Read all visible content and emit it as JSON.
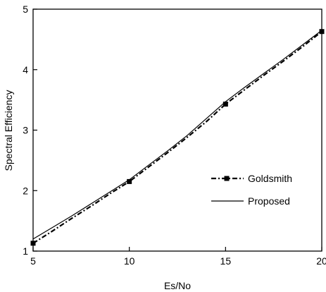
{
  "chart_data": {
    "type": "line",
    "title": "",
    "xlabel": "Es/No",
    "ylabel": "Spectral Efficiency",
    "xlim": [
      5,
      20
    ],
    "ylim": [
      1,
      5
    ],
    "xticks": [
      5,
      10,
      15,
      20
    ],
    "xtick_labels": [
      "5",
      "10",
      "15",
      "20"
    ],
    "yticks": [
      1,
      2,
      3,
      4,
      5
    ],
    "ytick_labels": [
      "1",
      "2",
      "3",
      "4",
      "5"
    ],
    "grid": false,
    "legend_position": "center-right",
    "series": [
      {
        "name": "Goldsmith",
        "style": "dash-dot",
        "marker": "square",
        "color": "#000000",
        "x": [
          5,
          6,
          7,
          8,
          9,
          10,
          11,
          12,
          13,
          14,
          15,
          16,
          17,
          18,
          19,
          20
        ],
        "y": [
          1.13,
          1.33,
          1.54,
          1.74,
          1.95,
          2.15,
          2.39,
          2.63,
          2.88,
          3.14,
          3.43,
          3.67,
          3.91,
          4.14,
          4.38,
          4.63
        ]
      },
      {
        "name": "Proposed",
        "style": "solid",
        "marker": "none",
        "color": "#000000",
        "x": [
          5,
          6,
          7,
          8,
          9,
          10,
          11,
          12,
          13,
          14,
          15,
          16,
          17,
          18,
          19,
          20
        ],
        "y": [
          1.2,
          1.39,
          1.58,
          1.78,
          1.98,
          2.18,
          2.42,
          2.66,
          2.91,
          3.19,
          3.47,
          3.71,
          3.94,
          4.17,
          4.41,
          4.65
        ]
      }
    ]
  }
}
